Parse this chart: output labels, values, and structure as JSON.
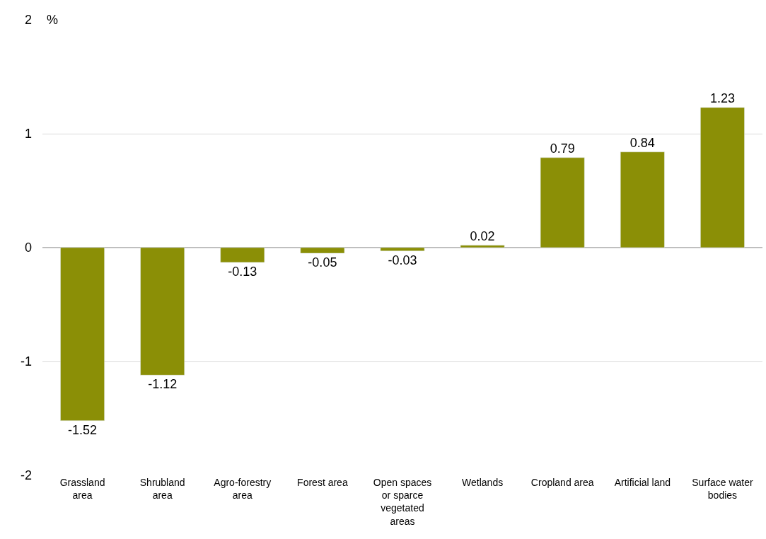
{
  "chart_data": {
    "type": "bar",
    "ylabel": "%",
    "categories": [
      "Grassland\narea",
      "Shrubland\narea",
      "Agro-forestry\narea",
      "Forest area",
      "Open spaces\nor sparce\nvegetated\nareas",
      "Wetlands",
      "Cropland area",
      "Artificial land",
      "Surface water\nbodies"
    ],
    "values": [
      -1.52,
      -1.12,
      -0.13,
      -0.05,
      -0.03,
      0.02,
      0.79,
      0.84,
      1.23
    ],
    "color": "#8b8f06",
    "ylim": [
      -2,
      2
    ],
    "yticks": [
      -2,
      -1,
      0,
      1,
      2
    ],
    "grid": "y",
    "data_labels": true
  }
}
